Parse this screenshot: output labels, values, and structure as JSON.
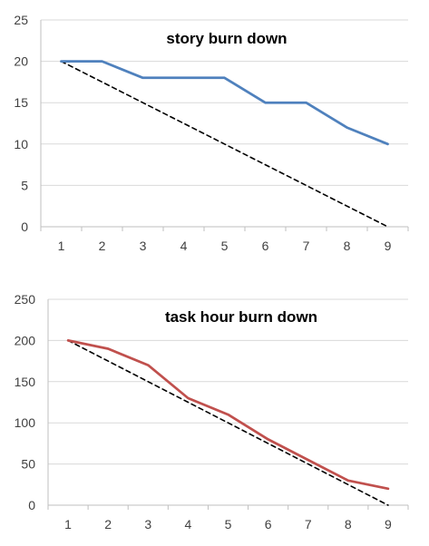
{
  "chart_data": [
    {
      "type": "line",
      "title": "story burn down",
      "xlabel": "",
      "ylabel": "",
      "categories": [
        "1",
        "2",
        "3",
        "4",
        "5",
        "6",
        "7",
        "8",
        "9"
      ],
      "yticks": [
        0,
        5,
        10,
        15,
        20,
        25
      ],
      "ylim": [
        0,
        25
      ],
      "grid": true,
      "legend": "none",
      "series": [
        {
          "role": "actual",
          "values": [
            20,
            20,
            18,
            18,
            18,
            15,
            15,
            12,
            10
          ],
          "color": "#4f81bd",
          "style": "solid"
        },
        {
          "role": "ideal",
          "values": [
            20,
            17.5,
            15,
            12.5,
            10,
            7.5,
            5,
            2.5,
            0
          ],
          "color": "#000000",
          "style": "dashed"
        }
      ]
    },
    {
      "type": "line",
      "title": "task hour burn down",
      "xlabel": "",
      "ylabel": "",
      "categories": [
        "1",
        "2",
        "3",
        "4",
        "5",
        "6",
        "7",
        "8",
        "9"
      ],
      "yticks": [
        0,
        50,
        100,
        150,
        200,
        250
      ],
      "ylim": [
        0,
        250
      ],
      "grid": true,
      "legend": "none",
      "series": [
        {
          "role": "actual",
          "values": [
            200,
            190,
            170,
            130,
            110,
            80,
            55,
            30,
            20
          ],
          "color": "#c0504d",
          "style": "solid"
        },
        {
          "role": "ideal",
          "values": [
            200,
            175,
            150,
            125,
            100,
            75,
            50,
            25,
            0
          ],
          "color": "#000000",
          "style": "dashed"
        }
      ]
    }
  ]
}
